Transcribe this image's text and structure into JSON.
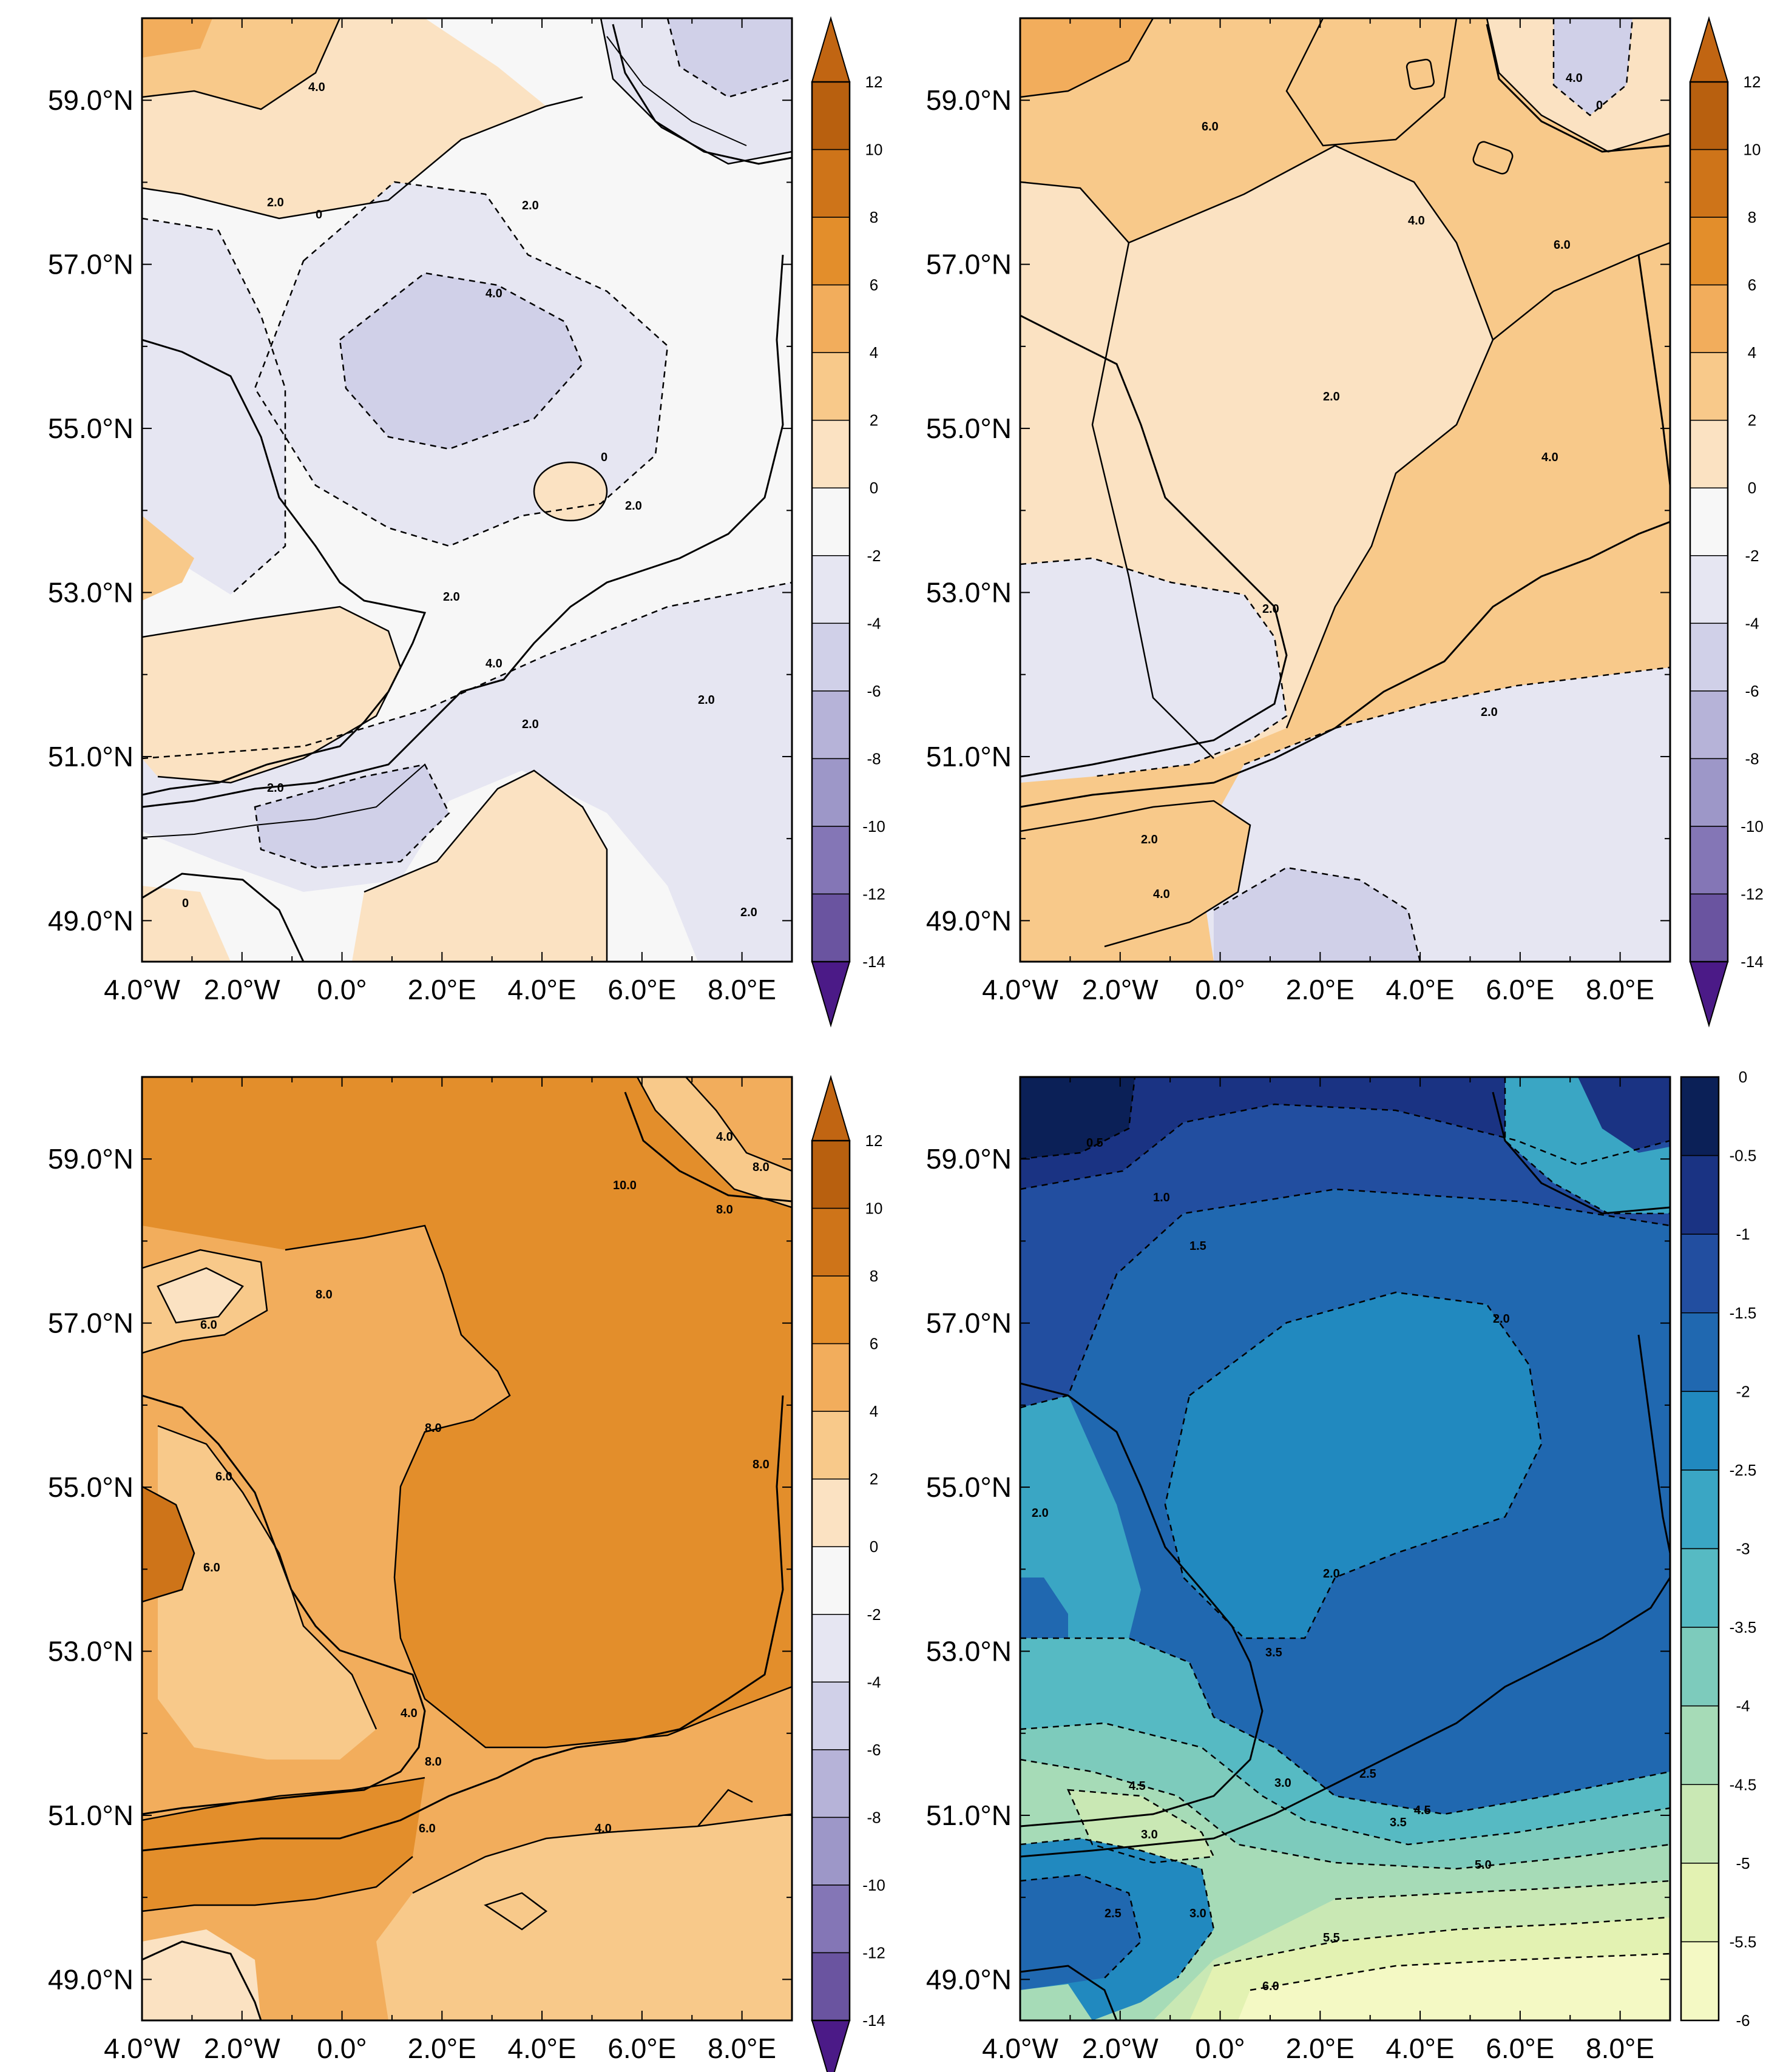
{
  "figure": {
    "lat_ticks": [
      "59.0°N",
      "57.0°N",
      "55.0°N",
      "53.0°N",
      "51.0°N",
      "49.0°N"
    ],
    "lon_ticks": [
      "4.0°W",
      "2.0°W",
      "0.0°",
      "2.0°E",
      "4.0°E",
      "6.0°E",
      "8.0°E"
    ],
    "extent": {
      "lon_min": -4.0,
      "lon_max": 9.0,
      "lat_min": 48.5,
      "lat_max": 60.0
    }
  },
  "panels": [
    {
      "id": "top-left",
      "colorbar": {
        "levels": [
          "12",
          "10",
          "8",
          "6",
          "4",
          "2",
          "0",
          "-2",
          "-4",
          "-6",
          "-8",
          "-10",
          "-12",
          "-14"
        ],
        "colors": [
          "#b8600f",
          "#ce7419",
          "#e38e2b",
          "#f2ad5c",
          "#f8c98a",
          "#fbe2c2",
          "#f7f7f7",
          "#e6e6f2",
          "#d0d0e8",
          "#b6b3d8",
          "#9d97c8",
          "#8476b6",
          "#6a54a0"
        ],
        "top_arrow": "#c16512",
        "bottom_arrow": "#4b1a87"
      },
      "contour_labels": [
        "4.0",
        "2.0",
        "0",
        "2.0",
        "4.0",
        "0",
        "2.0",
        "2.0",
        "4.0",
        "2.0",
        "2.0",
        "0",
        "2.0",
        "2.0"
      ]
    },
    {
      "id": "top-right",
      "colorbar": {
        "levels": [
          "12",
          "10",
          "8",
          "6",
          "4",
          "2",
          "0",
          "-2",
          "-4",
          "-6",
          "-8",
          "-10",
          "-12",
          "-14"
        ],
        "colors": [
          "#b8600f",
          "#ce7419",
          "#e38e2b",
          "#f2ad5c",
          "#f8c98a",
          "#fbe2c2",
          "#f7f7f7",
          "#e6e6f2",
          "#d0d0e8",
          "#b6b3d8",
          "#9d97c8",
          "#8476b6",
          "#6a54a0"
        ],
        "top_arrow": "#c16512",
        "bottom_arrow": "#4b1a87"
      },
      "contour_labels": [
        "6.0",
        "4.0",
        "0",
        "4.0",
        "6.0",
        "2.0",
        "4.0",
        "2.0",
        "2.0",
        "2.0",
        "4.0"
      ]
    },
    {
      "id": "bottom-left",
      "colorbar": {
        "levels": [
          "12",
          "10",
          "8",
          "6",
          "4",
          "2",
          "0",
          "-2",
          "-4",
          "-6",
          "-8",
          "-10",
          "-12",
          "-14"
        ],
        "colors": [
          "#b8600f",
          "#ce7419",
          "#e38e2b",
          "#f2ad5c",
          "#f8c98a",
          "#fbe2c2",
          "#f7f7f7",
          "#e6e6f2",
          "#d0d0e8",
          "#b6b3d8",
          "#9d97c8",
          "#8476b6",
          "#6a54a0"
        ],
        "top_arrow": "#c16512",
        "bottom_arrow": "#4b1a87"
      },
      "contour_labels": [
        "4.0",
        "10.0",
        "8.0",
        "8.0",
        "6.0",
        "8.0",
        "6.0",
        "8.0",
        "6.0",
        "8.0",
        "4.0",
        "8.0",
        "6.0",
        "4.0"
      ]
    },
    {
      "id": "bottom-right",
      "colorbar": {
        "levels": [
          "0",
          "-0.5",
          "-1",
          "-1.5",
          "-2",
          "-2.5",
          "-3",
          "-3.5",
          "-4",
          "-4.5",
          "-5",
          "-5.5",
          "-6"
        ],
        "colors": [
          "#0b2057",
          "#1a3383",
          "#224ea0",
          "#2068b0",
          "#2189bf",
          "#3aa6c4",
          "#56bac3",
          "#7dcbbc",
          "#a6dbb7",
          "#c9e8b4",
          "#e3f2b2",
          "#f4f9c4"
        ],
        "top_arrow": null,
        "bottom_arrow": null
      },
      "contour_labels": [
        "0.5",
        "1.0",
        "1.5",
        "2.0",
        "2.0",
        "2.0",
        "3.5",
        "4.5",
        "3.0",
        "2.5",
        "4.5",
        "5.0",
        "3.0",
        "2.5",
        "3.0",
        "5.5",
        "6.0",
        "3.5"
      ]
    }
  ]
}
